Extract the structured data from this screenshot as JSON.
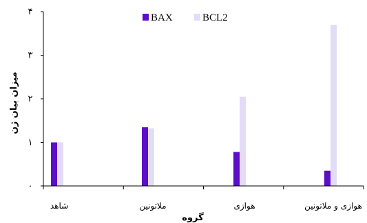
{
  "chart_data": {
    "type": "bar",
    "categories": [
      "شاهد",
      "ملاتونین",
      "هوازی",
      "هوازی و ملاتونین"
    ],
    "series": [
      {
        "name": "BAX",
        "values": [
          1.0,
          1.35,
          0.78,
          0.35
        ],
        "color": "#5b0fc7"
      },
      {
        "name": "BCL2",
        "values": [
          1.0,
          1.32,
          2.05,
          3.7
        ],
        "color": "#e3dcf6"
      }
    ],
    "xlabel": "گروه",
    "ylabel": "میزان بیان ژن",
    "ylim": [
      0,
      4
    ],
    "yticks": [
      {
        "value": 0,
        "label": "۰"
      },
      {
        "value": 1,
        "label": "۱"
      },
      {
        "value": 2,
        "label": "۲"
      },
      {
        "value": 3,
        "label": "۳"
      },
      {
        "value": 4,
        "label": "۴"
      }
    ],
    "grid": false,
    "legend_position": "top-center"
  }
}
